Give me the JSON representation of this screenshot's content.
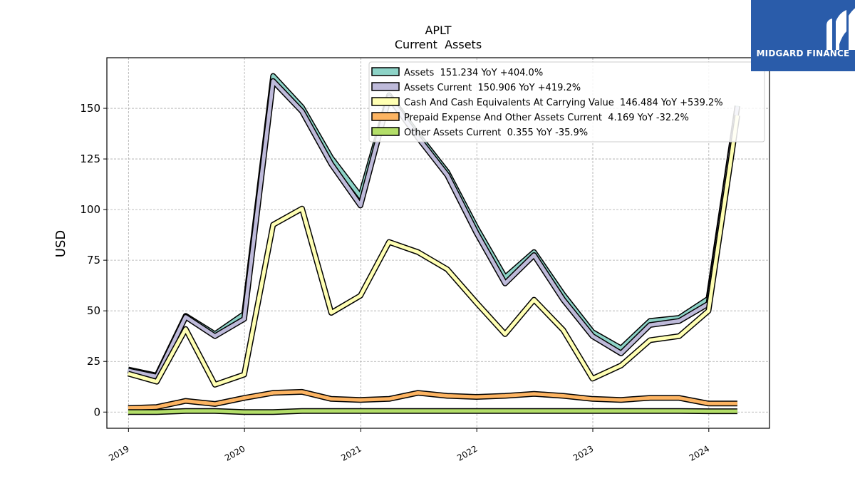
{
  "brand": {
    "name": "MIDGARD FINANCE",
    "bg_color": "#2a5caa",
    "icon": "midgard-logo-icon"
  },
  "chart_data": {
    "type": "line",
    "title": "APLT",
    "subtitle": "Current  Assets",
    "xlabel": "",
    "ylabel": "USD",
    "ylim": [
      -8,
      175
    ],
    "yticks": [
      0,
      25,
      50,
      75,
      100,
      125,
      150
    ],
    "xlim": [
      "2018-10-25",
      "2024-07-10"
    ],
    "xticks": [
      "2019",
      "2020",
      "2021",
      "2022",
      "2023",
      "2024"
    ],
    "grid": true,
    "legend_position": "top-right",
    "x": [
      "2018-12-31",
      "2019-03-31",
      "2019-06-30",
      "2019-09-30",
      "2019-12-31",
      "2020-03-31",
      "2020-06-30",
      "2020-09-30",
      "2020-12-31",
      "2021-03-31",
      "2021-06-30",
      "2021-09-30",
      "2021-12-31",
      "2022-03-31",
      "2022-06-30",
      "2022-09-30",
      "2022-12-31",
      "2023-03-31",
      "2023-06-30",
      "2023-09-30",
      "2023-12-31",
      "2024-03-31"
    ],
    "series": [
      {
        "name": "Assets",
        "legend": "Assets  151.234 YoY +404.0%",
        "color": "#8dd3c7",
        "values": [
          21,
          18,
          47.5,
          38.5,
          48.5,
          166,
          150.5,
          125.5,
          106.5,
          156.5,
          137,
          118.5,
          91,
          66.5,
          79,
          58,
          39.5,
          31.5,
          45,
          46.5,
          56,
          151.2
        ]
      },
      {
        "name": "Assets Current",
        "legend": "Assets Current  150.906 YoY +419.2%",
        "color": "#bebada",
        "values": [
          20.5,
          17.5,
          47,
          37.5,
          46,
          163.5,
          148.5,
          122.5,
          102,
          155.5,
          135.5,
          117,
          88.5,
          63.5,
          77.5,
          55.5,
          37.5,
          29,
          43,
          45,
          53.5,
          150.9
        ]
      },
      {
        "name": "Cash And Cash Equivalents At Carrying Value",
        "legend": "Cash And Cash Equivalents At Carrying Value  146.484 YoY +539.2%",
        "color": "#ffffb3",
        "values": [
          19,
          15,
          41,
          13.5,
          18.5,
          92.5,
          100.5,
          49,
          57.5,
          84,
          79,
          70.5,
          54,
          38.5,
          55.5,
          40.5,
          16.5,
          23,
          35.5,
          37.5,
          50,
          146.5
        ]
      },
      {
        "name": "Prepaid Expense And Other Assets Current",
        "legend": "Prepaid Expense And Other Assets Current  4.169 YoY -32.2%",
        "color": "#fdb462",
        "values": [
          2,
          2.5,
          5.5,
          4,
          7,
          9.5,
          10,
          6.5,
          6,
          6.5,
          9.5,
          8,
          7.5,
          8,
          9,
          8,
          6.5,
          6,
          7,
          7,
          4.2,
          4.2
        ]
      },
      {
        "name": "Other Assets Current",
        "legend": "Other Assets Current  0.355 YoY -35.9%",
        "color": "#b3de69",
        "values": [
          0,
          0,
          0.5,
          0.5,
          0,
          0,
          0.5,
          0.5,
          0.5,
          0.5,
          0.5,
          0.5,
          0.5,
          0.5,
          0.5,
          0.5,
          0.5,
          0.5,
          0.5,
          0.5,
          0.4,
          0.4
        ]
      }
    ]
  }
}
